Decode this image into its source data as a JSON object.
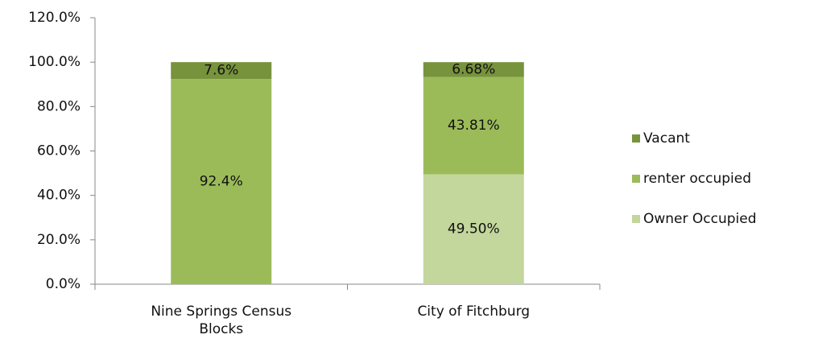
{
  "chart_data": {
    "type": "stacked_bar",
    "categories": [
      "Nine Springs Census Blocks",
      "City of Fitchburg"
    ],
    "series": [
      {
        "name": "Owner Occupied",
        "color": "#c3d69b",
        "values": [
          0,
          49.5
        ],
        "value_labels": [
          null,
          "49.50%"
        ]
      },
      {
        "name": "renter occupied",
        "color": "#9bbb59",
        "values": [
          92.4,
          43.81
        ],
        "value_labels": [
          "92.4%",
          "43.81%"
        ]
      },
      {
        "name": "Vacant",
        "color": "#77933c",
        "values": [
          7.6,
          6.68
        ],
        "value_labels": [
          "7.6%",
          "6.68%"
        ]
      }
    ],
    "ylim": [
      0,
      120
    ],
    "yticks": [
      {
        "value": 0,
        "label": "0.0%"
      },
      {
        "value": 20,
        "label": "20.0%"
      },
      {
        "value": 40,
        "label": "40.0%"
      },
      {
        "value": 60,
        "label": "60.0%"
      },
      {
        "value": 80,
        "label": "80.0%"
      },
      {
        "value": 100,
        "label": "100.0%"
      },
      {
        "value": 120,
        "label": "120.0%"
      }
    ],
    "legend": "right"
  }
}
